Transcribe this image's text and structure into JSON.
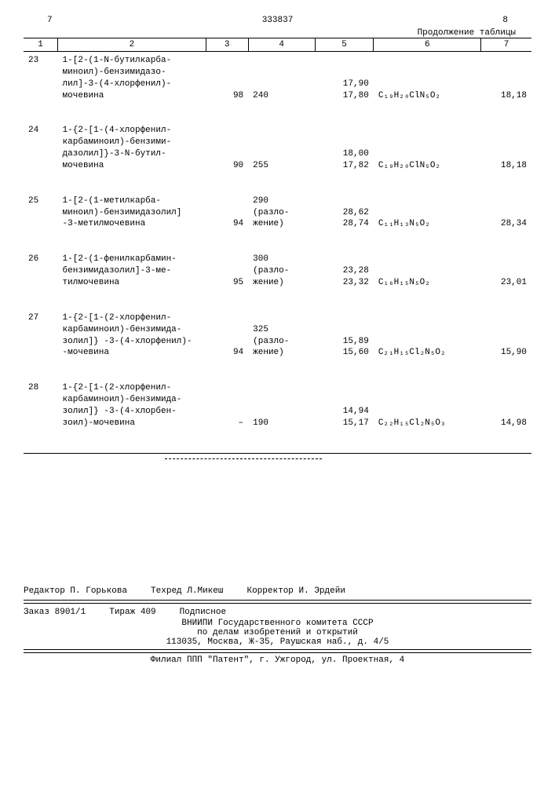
{
  "header": {
    "left_page": "7",
    "doc_number": "333837",
    "right_page": "8",
    "continuation": "Продолжение таблицы"
  },
  "columns": [
    "1",
    "2",
    "3",
    "4",
    "5",
    "6",
    "7"
  ],
  "rows": [
    {
      "n": "23",
      "name": "1-[2-(1-N-бутилкарба-\nминоил)-бензимидазо-\nлил]-3-(4-хлорфенил)-\nмочевина",
      "c3": "98",
      "c4": "240",
      "c5": "17,90\n17,80",
      "formula": "C₁₉H₂₀ClN₅O₂",
      "c7": "18,18"
    },
    {
      "n": "24",
      "name": "1-{2-[1-(4-хлорфенил-\nкарбаминоил)-бензими-\nдазолил]}-3-N-бутил-\nмочевина",
      "c3": "90",
      "c4": "255",
      "c5": "18,00\n17,82",
      "formula": "C₁₉H₂₀ClN₅O₂",
      "c7": "18,18"
    },
    {
      "n": "25",
      "name": "1-[2-(1-метилкарба-\nминоил)-бензимидазолил]\n-3-метилмочевина",
      "c3": "94",
      "c4": "290\n(разло-\nжение)",
      "c5": "28,62\n28,74",
      "formula": "C₁₁H₁₃N₅O₂",
      "c7": "28,34"
    },
    {
      "n": "26",
      "name": "1-[2-(1-фенилкарбамин-\nбензимидазолил]-3-ме-\nтилмочевина",
      "c3": "95",
      "c4": "300\n(разло-\nжение)",
      "c5": "23,28\n23,32",
      "formula": "C₁₆H₁₅N₅O₂",
      "c7": "23,01"
    },
    {
      "n": "27",
      "name": "1-{2-[1-(2-хлорфенил-\nкарбаминоил)-бензимида-\nзолил]} -3-(4-хлорфенил)-\n-мочевина",
      "c3": "94",
      "c4": "325\n(разло-\nжение)",
      "c5": "15,89\n15,60",
      "formula": "C₂₁H₁₅Cl₂N₅O₂",
      "c7": "15,90"
    },
    {
      "n": "28",
      "name": "1-{2-[1-(2-хлорфенил-\nкарбаминоил)-бензимида-\nзолил]} -3-(4-хлорбен-\nзоил)-мочевина",
      "c3": "–",
      "c4": "190",
      "c5": "14,94\n15,17",
      "formula": "C₂₂H₁₅Cl₂N₅O₃",
      "c7": "14,98"
    }
  ],
  "footer": {
    "editor_label": "Редактор",
    "editor": "П. Горькова",
    "tech_label": "Техред",
    "tech": "Л.Микеш",
    "corrector_label": "Корректор",
    "corrector": "И. Эрдейи",
    "order_label": "Заказ",
    "order": "8901/1",
    "tiraj_label": "Тираж",
    "tiraj": "409",
    "podpisnoe": "Подписное",
    "org1": "ВНИИПИ Государственного комитета СССР",
    "org2": "по делам изобретений и открытий",
    "addr1": "113035, Москва, Ж-35, Раушская наб., д. 4/5",
    "addr2": "Филиал ППП \"Патент\", г. Ужгород, ул. Проектная, 4"
  }
}
